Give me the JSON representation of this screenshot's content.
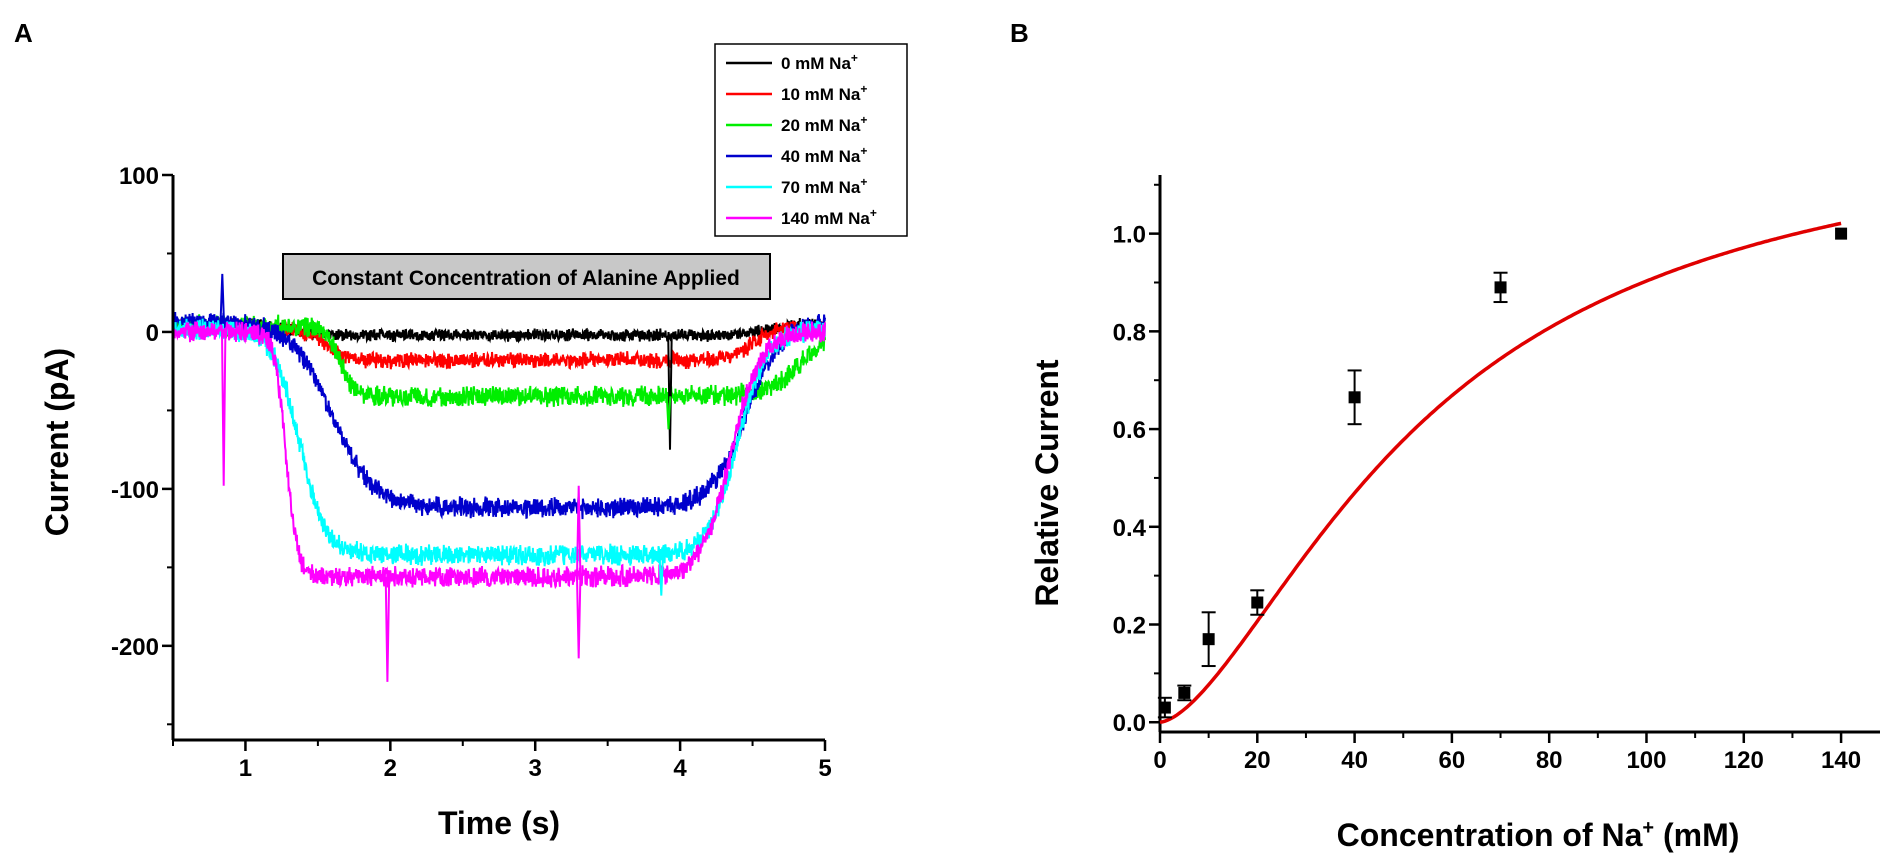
{
  "chart_data": [
    {
      "panel": "A",
      "type": "line",
      "xlabel": "Time (s)",
      "ylabel": "Current (pA)",
      "xlim": [
        0.5,
        5
      ],
      "ylim": [
        -260,
        100
      ],
      "xticks": [
        1,
        2,
        3,
        4,
        5
      ],
      "xtick_labels": [
        "1",
        "2",
        "3",
        "4",
        "5"
      ],
      "yticks": [
        100,
        0,
        -100,
        -200
      ],
      "ytick_labels": [
        "100",
        "0",
        "-100",
        "-200"
      ],
      "annotation": "Constant Concentration of Alanine Applied",
      "legend_unit": "mM Na",
      "legend_sup": "+",
      "series": [
        {
          "name": "0 mM Na+",
          "conc": "0",
          "color": "#000000",
          "baseline": 5,
          "plateau": -2,
          "onset": 1.3,
          "tau": 0.1,
          "offset": 4.6,
          "tau_off": 0.1,
          "noise": 3
        },
        {
          "name": "10 mM Na+",
          "conc": "10",
          "color": "#ff0000",
          "baseline": 3,
          "plateau": -18,
          "onset": 1.55,
          "tau": 0.08,
          "offset": 4.5,
          "tau_off": 0.08,
          "noise": 4
        },
        {
          "name": "20 mM Na+",
          "conc": "20",
          "color": "#00ee00",
          "baseline": 4,
          "plateau": -41,
          "onset": 1.65,
          "tau": 0.05,
          "offset": 4.85,
          "tau_off": 0.12,
          "noise": 5
        },
        {
          "name": "40 mM Na+",
          "conc": "40",
          "color": "#0000cc",
          "baseline": 6,
          "plateau": -112,
          "onset": 1.6,
          "tau": 0.14,
          "offset": 4.45,
          "tau_off": 0.12,
          "noise": 5
        },
        {
          "name": "70 mM Na+",
          "conc": "70",
          "color": "#00ffff",
          "baseline": 2,
          "plateau": -142,
          "onset": 1.37,
          "tau": 0.09,
          "offset": 4.4,
          "tau_off": 0.1,
          "noise": 5
        },
        {
          "name": "140 mM Na+",
          "conc": "140",
          "color": "#ff00ff",
          "baseline": 0,
          "plateau": -156,
          "onset": 1.28,
          "tau": 0.04,
          "offset": 4.35,
          "tau_off": 0.1,
          "noise": 5
        }
      ],
      "spikes": [
        {
          "series": "140 mM Na+",
          "x": 0.85,
          "y": -98
        },
        {
          "series": "40 mM Na+",
          "x": 0.84,
          "y": 37
        },
        {
          "series": "140 mM Na+",
          "x": 1.98,
          "y": -223
        },
        {
          "series": "140 mM Na+",
          "x": 3.3,
          "y": -208
        },
        {
          "series": "140 mM Na+",
          "x": 3.3,
          "y": -98
        },
        {
          "series": "70 mM Na+",
          "x": 3.87,
          "y": -168
        },
        {
          "series": "0 mM Na+",
          "x": 3.93,
          "y": -75
        },
        {
          "series": "20 mM Na+",
          "x": 3.92,
          "y": -62
        }
      ]
    },
    {
      "panel": "B",
      "type": "scatter",
      "xlabel": "Concentration of Na",
      "xlabel_sup": "+",
      "xlabel_unit": "(mM)",
      "ylabel": "Relative Current",
      "xlim": [
        0,
        148
      ],
      "ylim": [
        -0.02,
        1.12
      ],
      "xticks": [
        0,
        20,
        40,
        60,
        80,
        100,
        120,
        140
      ],
      "xtick_labels": [
        "0",
        "20",
        "40",
        "60",
        "80",
        "100",
        "120",
        "140"
      ],
      "yticks": [
        0.0,
        0.2,
        0.4,
        0.6,
        0.8,
        1.0
      ],
      "ytick_labels": [
        "0.0",
        "0.2",
        "0.4",
        "0.6",
        "0.8",
        "1.0"
      ],
      "points": [
        {
          "x": 1,
          "y": 0.03,
          "err": 0.02
        },
        {
          "x": 5,
          "y": 0.06,
          "err": 0.015
        },
        {
          "x": 10,
          "y": 0.17,
          "err": 0.055
        },
        {
          "x": 20,
          "y": 0.245,
          "err": 0.025
        },
        {
          "x": 40,
          "y": 0.665,
          "err": 0.055
        },
        {
          "x": 70,
          "y": 0.89,
          "err": 0.03
        },
        {
          "x": 140,
          "y": 1.0,
          "err": 0
        }
      ],
      "fit": {
        "type": "hill",
        "color": "#e00000",
        "vmax": 1.25,
        "k": 55,
        "n": 1.6,
        "x_start": 0,
        "x_end": 140
      }
    }
  ],
  "panels": {
    "a": {
      "label": "A"
    },
    "b": {
      "label": "B"
    }
  }
}
